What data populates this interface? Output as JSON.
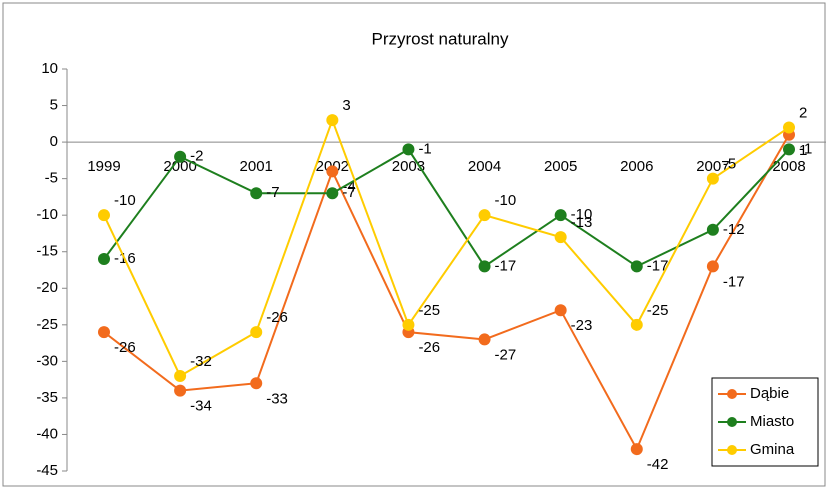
{
  "chart_data": {
    "type": "line",
    "title": "Przyrost naturalny",
    "categories": [
      "1999",
      "2000",
      "2001",
      "2002",
      "2003",
      "2004",
      "2005",
      "2006",
      "2007",
      "2008"
    ],
    "series": [
      {
        "name": "Dąbie",
        "color": "#f26b1d",
        "values": [
          -26,
          -34,
          -33,
          -4,
          -26,
          -27,
          -23,
          -42,
          -17,
          1
        ]
      },
      {
        "name": "Miasto",
        "color": "#1e7f1e",
        "values": [
          -16,
          -2,
          -7,
          -7,
          -1,
          -17,
          -10,
          -17,
          -12,
          -1
        ]
      },
      {
        "name": "Gmina",
        "color": "#ffcc00",
        "values": [
          -10,
          -32,
          -26,
          3,
          -25,
          -10,
          -13,
          -25,
          -5,
          2
        ]
      }
    ],
    "ylim": [
      -45,
      10
    ],
    "yticks": [
      -45,
      -40,
      -35,
      -30,
      -25,
      -20,
      -15,
      -10,
      -5,
      0,
      5,
      10
    ],
    "grid": false,
    "legend": "lower right",
    "data_labels": true
  }
}
